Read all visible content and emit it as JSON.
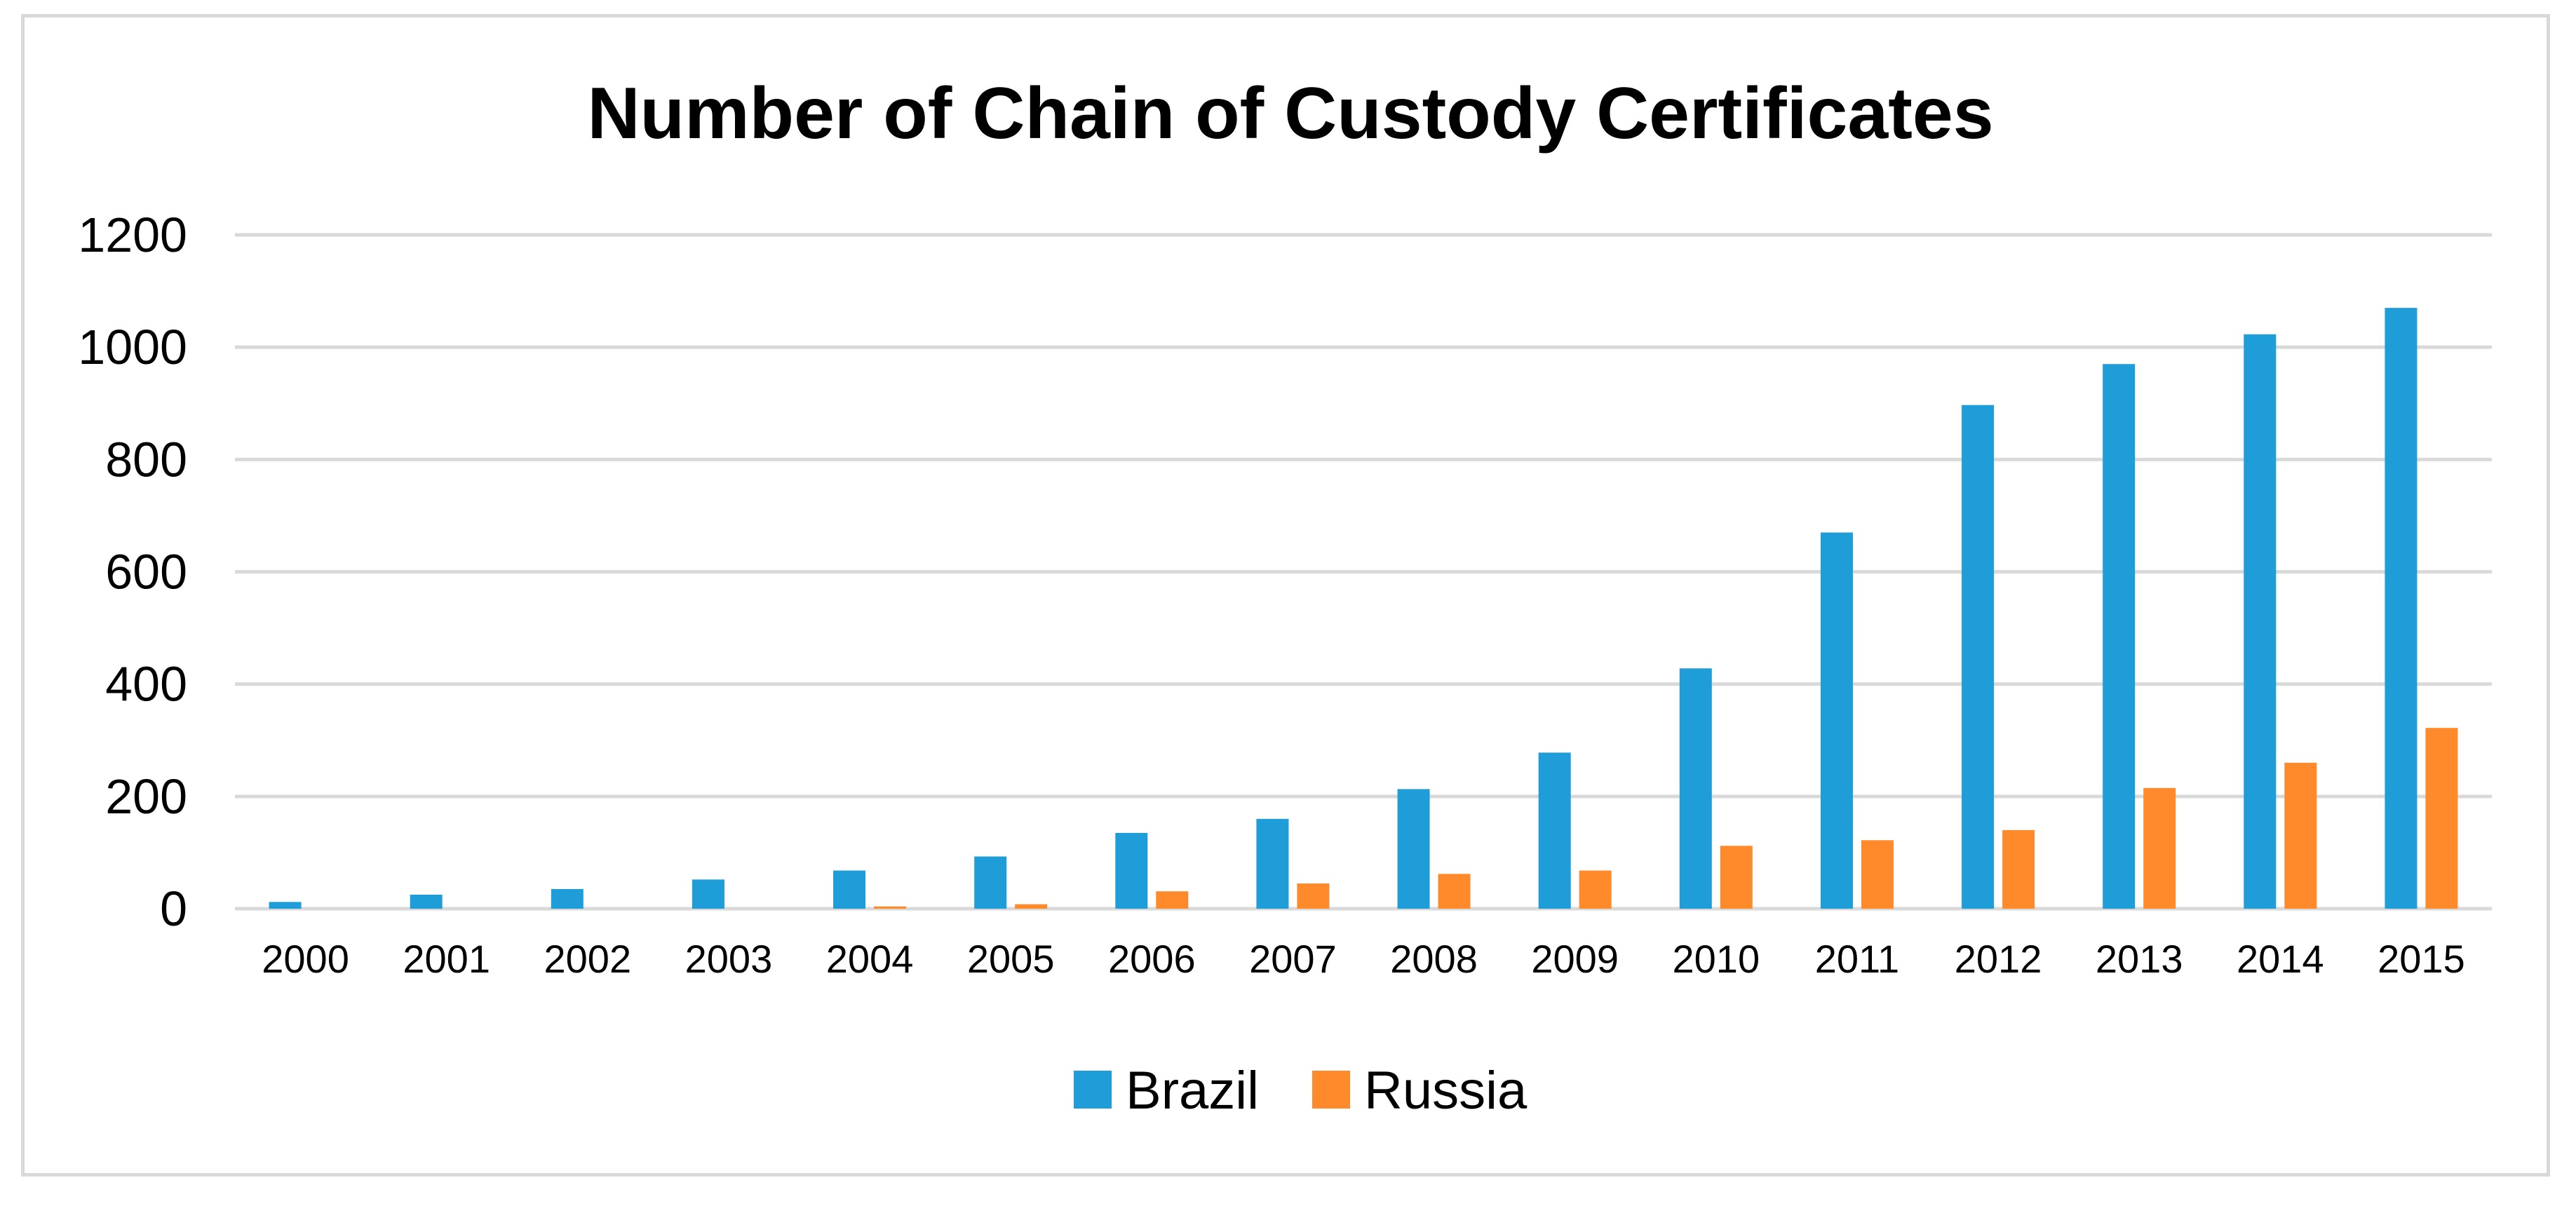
{
  "chart_data": {
    "type": "bar",
    "title": "Number of Chain of Custody Certificates",
    "xlabel": "",
    "ylabel": "",
    "categories": [
      "2000",
      "2001",
      "2002",
      "2003",
      "2004",
      "2005",
      "2006",
      "2007",
      "2008",
      "2009",
      "2010",
      "2011",
      "2012",
      "2013",
      "2014",
      "2015"
    ],
    "series": [
      {
        "name": "Brazil",
        "color": "#1f9dd9",
        "values": [
          12,
          25,
          35,
          52,
          68,
          93,
          135,
          160,
          213,
          278,
          428,
          670,
          897,
          970,
          1023,
          1070
        ]
      },
      {
        "name": "Russia",
        "color": "#ff8a2b",
        "values": [
          0,
          0,
          0,
          0,
          4,
          8,
          31,
          45,
          62,
          68,
          112,
          122,
          140,
          215,
          260,
          322
        ]
      }
    ],
    "ylim": [
      0,
      1200
    ],
    "yticks": [
      "0",
      "200",
      "400",
      "600",
      "800",
      "1000",
      "1200"
    ],
    "grid": true,
    "legend_position": "bottom-center",
    "gridline_color": "#d9d9d9"
  }
}
